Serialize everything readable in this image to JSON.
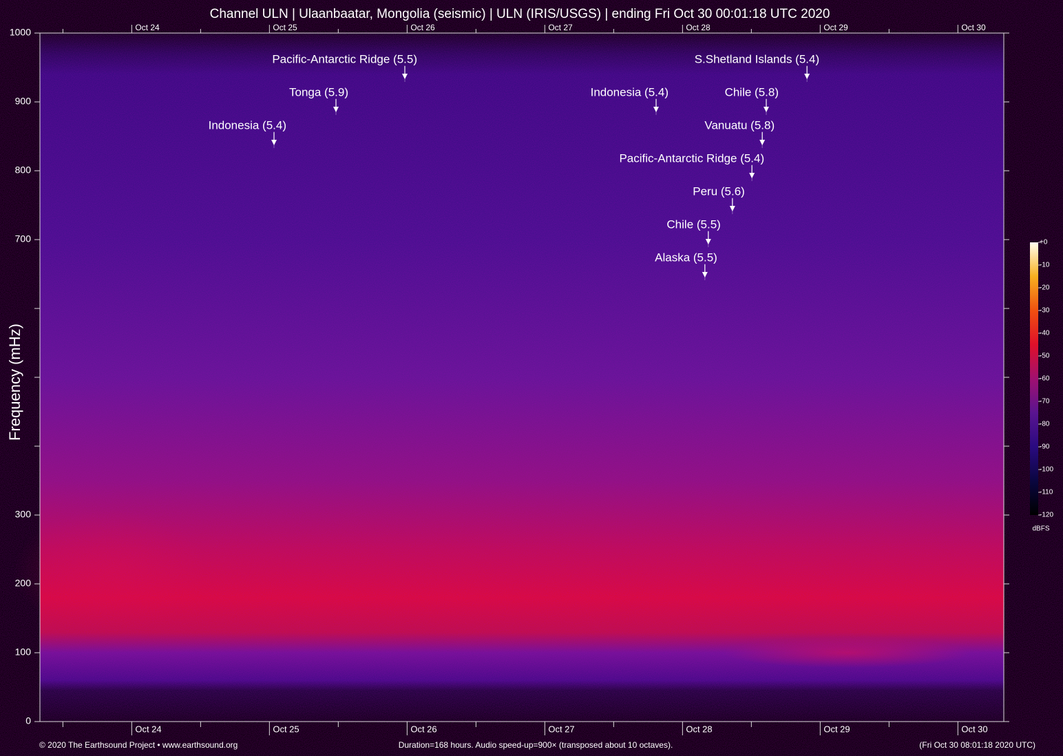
{
  "chart_data": {
    "type": "spectrogram",
    "title": "Channel ULN | Ulaanbaatar, Mongolia (seismic) | ULN (IRIS/USGS) | ending Fri Oct 30 00:01:18 UTC 2020",
    "ylabel": "Frequency (mHz)",
    "xlim": [
      0,
      168
    ],
    "xticks": [
      {
        "value": 16,
        "label": "Oct 24"
      },
      {
        "value": 40,
        "label": "Oct 25"
      },
      {
        "value": 64,
        "label": "Oct 26"
      },
      {
        "value": 88,
        "label": "Oct 27"
      },
      {
        "value": 112,
        "label": "Oct 28"
      },
      {
        "value": 136,
        "label": "Oct 29"
      },
      {
        "value": 160,
        "label": "Oct 30"
      }
    ],
    "xticks_minor": [
      4,
      28,
      52,
      76,
      100,
      124,
      148
    ],
    "ylim": [
      0,
      1000
    ],
    "yticks": [
      0,
      100,
      200,
      300,
      700,
      800,
      900,
      1000
    ],
    "yticks_minor": [
      400,
      500,
      600
    ],
    "events": [
      {
        "label": "Pacific-Antarctic Ridge (5.5)",
        "x": 63.6
      },
      {
        "label": "Tonga (5.9)",
        "x": 51.6
      },
      {
        "label": "Indonesia (5.4)",
        "x": 40.8
      },
      {
        "label": "S.Shetland Islands (5.4)",
        "x": 133.7
      },
      {
        "label": "Indonesia (5.4)",
        "x": 107.4
      },
      {
        "label": "Chile (5.8)",
        "x": 126.6
      },
      {
        "label": "Vanuatu (5.8)",
        "x": 125.9
      },
      {
        "label": "Pacific-Antarctic Ridge (5.4)",
        "x": 124.1
      },
      {
        "label": "Peru (5.6)",
        "x": 120.7
      },
      {
        "label": "Chile (5.5)",
        "x": 116.5
      },
      {
        "label": "Alaska (5.5)",
        "x": 115.9
      }
    ],
    "colorbar": {
      "label": "dBFS",
      "lim": [
        -120,
        0
      ],
      "ticks": [
        {
          "value": 0,
          "label": "+0"
        },
        -10,
        -20,
        -30,
        -40,
        -50,
        -60,
        -70,
        -80,
        -90,
        -100,
        -110,
        -120
      ],
      "colors": [
        "#000000",
        "#0a0640",
        "#2a0a80",
        "#5a1490",
        "#a01070",
        "#e0102a",
        "#f05010",
        "#f8b020",
        "#fffff0"
      ]
    },
    "footer": {
      "left": "© 2020 The Earthsound Project • www.earthsound.org",
      "center": "Duration=168 hours. Audio speed-up=900× (transposed about 10 octaves).",
      "right": "(Fri Oct 30 08:01:18 2020 UTC)"
    }
  }
}
